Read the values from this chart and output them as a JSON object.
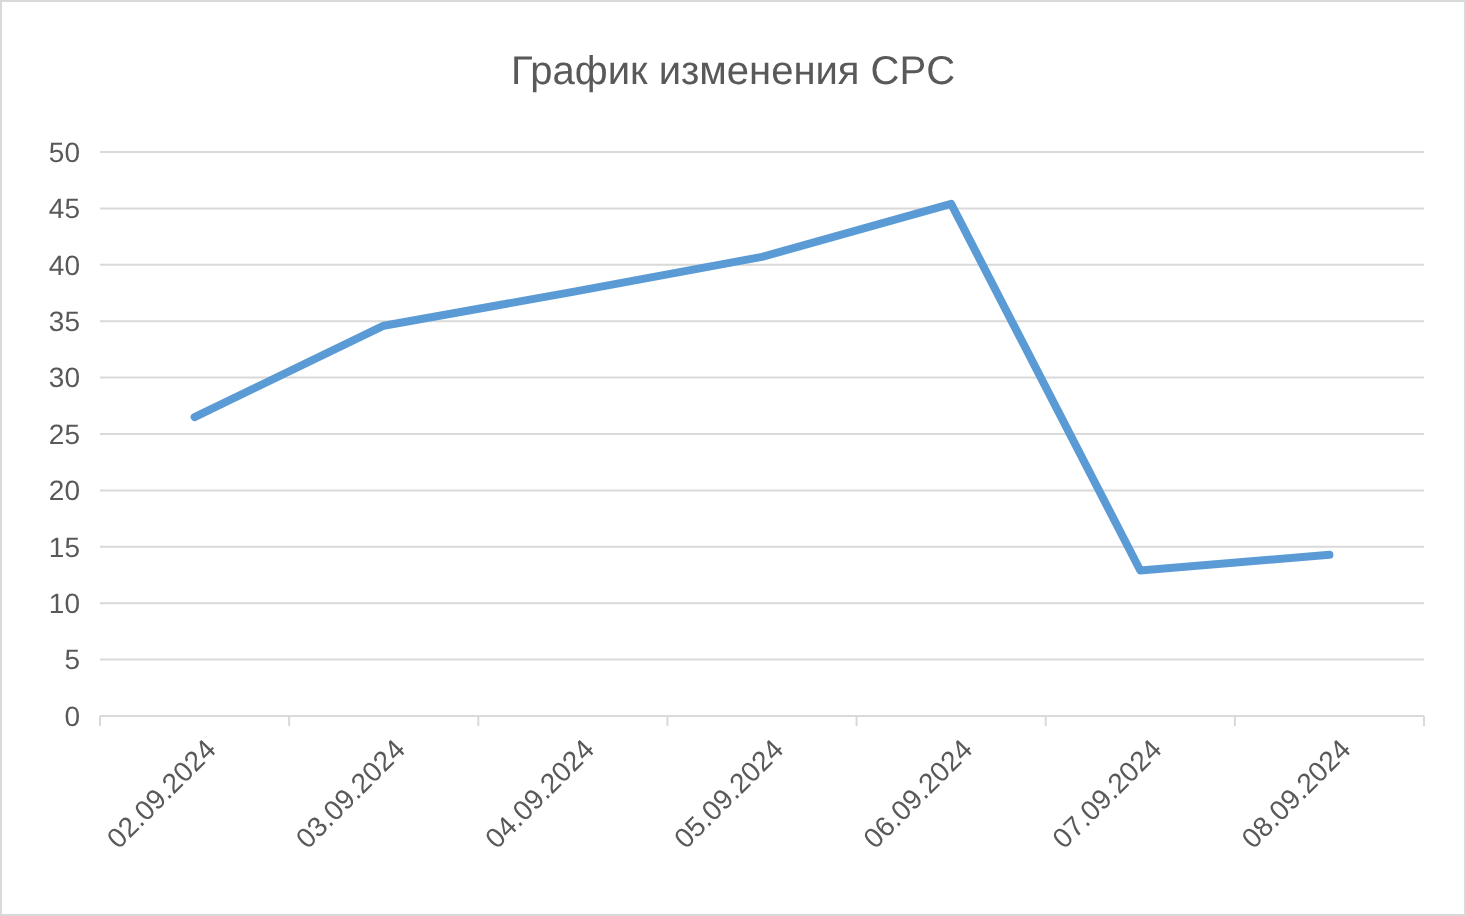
{
  "chart_data": {
    "type": "line",
    "title": "График изменения CPC",
    "categories": [
      "02.09.2024",
      "03.09.2024",
      "04.09.2024",
      "05.09.2024",
      "06.09.2024",
      "07.09.2024",
      "08.09.2024"
    ],
    "series": [
      {
        "color": "#5b9bd5",
        "values": [
          26.5,
          34.6,
          37.6,
          40.7,
          45.4,
          12.9,
          14.3
        ]
      }
    ],
    "ylim": [
      0,
      50
    ],
    "yticks": [
      0,
      5,
      10,
      15,
      20,
      25,
      30,
      35,
      40,
      45,
      50
    ],
    "grid": "y",
    "marker": "none",
    "line_style": "solid"
  }
}
